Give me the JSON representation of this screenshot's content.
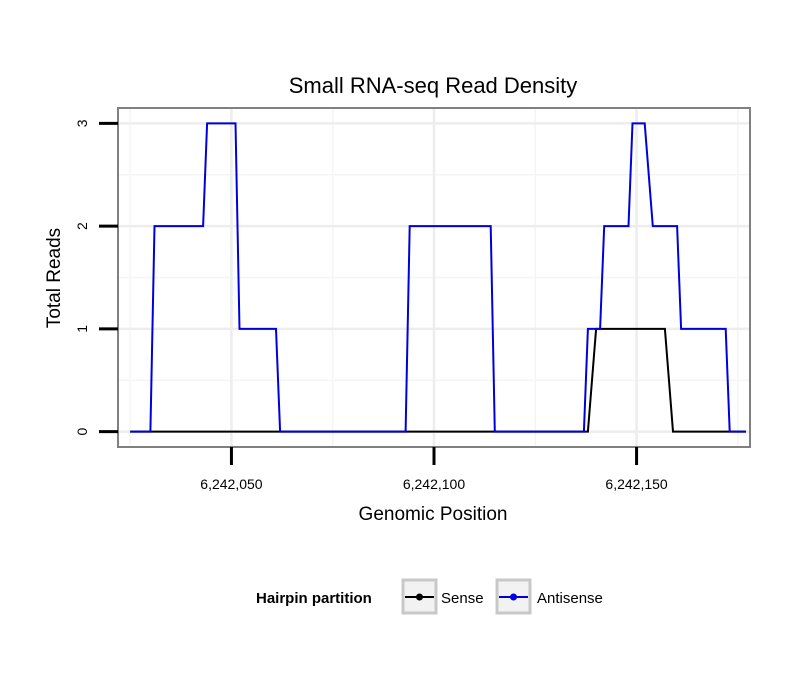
{
  "chart_data": {
    "type": "line",
    "title": "Small RNA-seq Read Density",
    "xlabel": "Genomic Position",
    "ylabel": "Total Reads",
    "xlim": [
      6242022,
      6242178
    ],
    "ylim": [
      -0.15,
      3.15
    ],
    "xticks": [
      6242050,
      6242100,
      6242150
    ],
    "xtick_labels": [
      "6,242,050",
      "6,242,100",
      "6,242,150"
    ],
    "yticks": [
      0,
      1,
      2,
      3
    ],
    "ytick_labels": [
      "0",
      "1",
      "2",
      "3"
    ],
    "grid": true,
    "legend": {
      "title": "Hairpin partition",
      "position": "bottom"
    },
    "series": [
      {
        "name": "Sense",
        "color": "#000000",
        "points": [
          [
            6242025,
            0
          ],
          [
            6242138,
            0
          ],
          [
            6242140,
            1
          ],
          [
            6242157,
            1
          ],
          [
            6242159,
            0
          ],
          [
            6242177,
            0
          ]
        ]
      },
      {
        "name": "Antisense",
        "color": "#0000dd",
        "points": [
          [
            6242025,
            0
          ],
          [
            6242030,
            0
          ],
          [
            6242031,
            2
          ],
          [
            6242043,
            2
          ],
          [
            6242044,
            3
          ],
          [
            6242051,
            3
          ],
          [
            6242052,
            1
          ],
          [
            6242061,
            1
          ],
          [
            6242062,
            0
          ],
          [
            6242093,
            0
          ],
          [
            6242094,
            2
          ],
          [
            6242114,
            2
          ],
          [
            6242115,
            0
          ],
          [
            6242137,
            0
          ],
          [
            6242138,
            1
          ],
          [
            6242141,
            1
          ],
          [
            6242142,
            2
          ],
          [
            6242148,
            2
          ],
          [
            6242149,
            3
          ],
          [
            6242152,
            3
          ],
          [
            6242154,
            2
          ],
          [
            6242160,
            2
          ],
          [
            6242161,
            1
          ],
          [
            6242172,
            1
          ],
          [
            6242173,
            0
          ],
          [
            6242177,
            0
          ]
        ]
      }
    ]
  }
}
